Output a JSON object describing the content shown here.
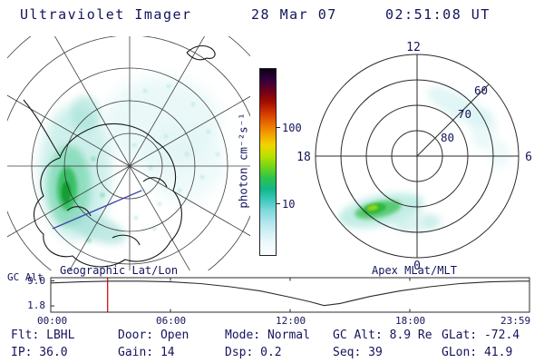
{
  "header": {
    "title": "Ultraviolet Imager",
    "date": "28 Mar 07",
    "time": "02:51:08 UT"
  },
  "panels": {
    "geo_caption": "Geographic Lat/Lon",
    "apex_caption": "Apex MLat/MLT"
  },
  "colorbar": {
    "label": "photon cm⁻²s⁻¹",
    "scale": "log",
    "tick_labels": [
      "100",
      "10"
    ],
    "colors": [
      "#0d0018",
      "#33003c",
      "#6b001d",
      "#a30b00",
      "#d03800",
      "#ea6c00",
      "#f4a300",
      "#efd600",
      "#b8e000",
      "#6cd41c",
      "#2cc24e",
      "#12b788",
      "#3fc9c0",
      "#83d9dd",
      "#b0e6ee",
      "#d4f1f6",
      "#eef9fc",
      "#fbfeff"
    ]
  },
  "apex_labels": {
    "mlt_12": "12",
    "mlt_18": "18",
    "mlt_6": "6",
    "mlt_0": "0",
    "mlat_60": "60",
    "mlat_70": "70",
    "mlat_80": "80"
  },
  "strip_chart": {
    "ylabel": "GC Alt",
    "ytick_top": "9.0",
    "ytick_bottom": "1.8",
    "xticks": [
      "00:00",
      "06:00",
      "12:00",
      "18:00",
      "23:59"
    ]
  },
  "status": {
    "row1": [
      "Flt: LBHL",
      "Door: Open",
      "Mode: Normal",
      "GC Alt: 8.9 Re",
      "GLat: -72.4"
    ],
    "row2": [
      "IP: 36.0",
      "Gain: 14",
      "Dsp: 0.2",
      "Seq: 39",
      "GLon: 41.9"
    ]
  },
  "chart_data": [
    {
      "type": "heatmap",
      "title": "Geographic Lat/Lon",
      "projection": "south polar stereographic, geographic coordinates with Antarctica coastline",
      "colorbar_label": "photon cm⁻²s⁻¹",
      "colorbar_scale": "log",
      "colorbar_ticks": [
        100,
        10
      ],
      "features": [
        "bright auroral emission band on left (dusk) side near Antarctic coastline, peak above 100 photon cm-2 s-1",
        "diffuse weak cyan emission speckle over upper-right of disk",
        "short blue spacecraft track line segment lower-left"
      ]
    },
    {
      "type": "heatmap",
      "title": "Apex MLat/MLT",
      "projection": "magnetic polar dial, MLT 12 top / 0 bottom / 18 left / 6 right",
      "mlat_rings": [
        60,
        70,
        80
      ],
      "features": [
        "bright auroral arc near 20-22 MLT between 60 and 70 deg MLat",
        "faint diffuse emission near 1-3 MLT around 70-80 deg MLat",
        "weak patch near 6 MLT"
      ]
    },
    {
      "type": "line",
      "title": "GC Alt",
      "ylabel": "GC Alt",
      "ylim": [
        0,
        9.9
      ],
      "yticks": [
        9.0,
        1.8
      ],
      "xticks": [
        "00:00",
        "06:00",
        "12:00",
        "18:00",
        "23:59"
      ],
      "x_hours": [
        0,
        1.5,
        3,
        4.5,
        6,
        7.5,
        9,
        10.5,
        12,
        13,
        13.7,
        14.5,
        16,
        17.5,
        19,
        20.5,
        22,
        23.5,
        24
      ],
      "values_re": [
        8.4,
        8.7,
        8.9,
        8.9,
        8.7,
        8.2,
        7.3,
        6.1,
        4.3,
        3.0,
        1.9,
        2.5,
        4.5,
        6.1,
        7.3,
        8.2,
        8.7,
        8.9,
        8.9
      ],
      "marker_hour": 2.85,
      "marker_color": "#cc0000"
    }
  ]
}
